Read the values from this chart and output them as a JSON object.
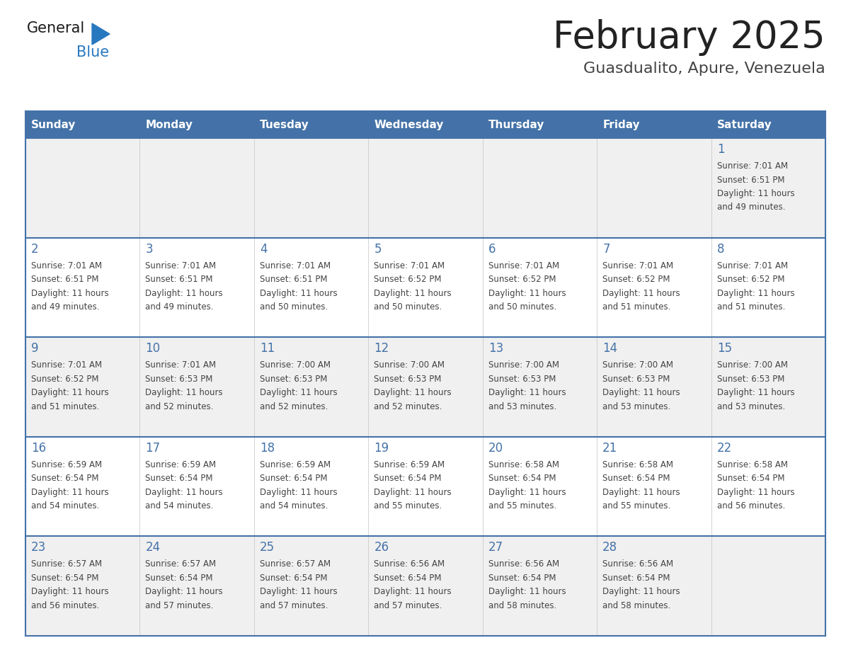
{
  "title": "February 2025",
  "subtitle": "Guasdualito, Apure, Venezuela",
  "header_bg": "#4472A8",
  "header_text_color": "#FFFFFF",
  "cell_bg_light": "#F0F0F0",
  "cell_bg_white": "#FFFFFF",
  "day_headers": [
    "Sunday",
    "Monday",
    "Tuesday",
    "Wednesday",
    "Thursday",
    "Friday",
    "Saturday"
  ],
  "title_color": "#222222",
  "subtitle_color": "#444444",
  "day_num_color": "#4472A8",
  "info_color": "#444444",
  "border_color": "#4472A8",
  "sep_color": "#CCCCCC",
  "logo_general_color": "#1a1a1a",
  "logo_blue_color": "#2878C0",
  "calendar": [
    [
      null,
      null,
      null,
      null,
      null,
      null,
      {
        "day": 1,
        "sunrise": "7:01 AM",
        "sunset": "6:51 PM",
        "daylight": "11 hours and 49 minutes."
      }
    ],
    [
      {
        "day": 2,
        "sunrise": "7:01 AM",
        "sunset": "6:51 PM",
        "daylight": "11 hours and 49 minutes."
      },
      {
        "day": 3,
        "sunrise": "7:01 AM",
        "sunset": "6:51 PM",
        "daylight": "11 hours and 49 minutes."
      },
      {
        "day": 4,
        "sunrise": "7:01 AM",
        "sunset": "6:51 PM",
        "daylight": "11 hours and 50 minutes."
      },
      {
        "day": 5,
        "sunrise": "7:01 AM",
        "sunset": "6:52 PM",
        "daylight": "11 hours and 50 minutes."
      },
      {
        "day": 6,
        "sunrise": "7:01 AM",
        "sunset": "6:52 PM",
        "daylight": "11 hours and 50 minutes."
      },
      {
        "day": 7,
        "sunrise": "7:01 AM",
        "sunset": "6:52 PM",
        "daylight": "11 hours and 51 minutes."
      },
      {
        "day": 8,
        "sunrise": "7:01 AM",
        "sunset": "6:52 PM",
        "daylight": "11 hours and 51 minutes."
      }
    ],
    [
      {
        "day": 9,
        "sunrise": "7:01 AM",
        "sunset": "6:52 PM",
        "daylight": "11 hours and 51 minutes."
      },
      {
        "day": 10,
        "sunrise": "7:01 AM",
        "sunset": "6:53 PM",
        "daylight": "11 hours and 52 minutes."
      },
      {
        "day": 11,
        "sunrise": "7:00 AM",
        "sunset": "6:53 PM",
        "daylight": "11 hours and 52 minutes."
      },
      {
        "day": 12,
        "sunrise": "7:00 AM",
        "sunset": "6:53 PM",
        "daylight": "11 hours and 52 minutes."
      },
      {
        "day": 13,
        "sunrise": "7:00 AM",
        "sunset": "6:53 PM",
        "daylight": "11 hours and 53 minutes."
      },
      {
        "day": 14,
        "sunrise": "7:00 AM",
        "sunset": "6:53 PM",
        "daylight": "11 hours and 53 minutes."
      },
      {
        "day": 15,
        "sunrise": "7:00 AM",
        "sunset": "6:53 PM",
        "daylight": "11 hours and 53 minutes."
      }
    ],
    [
      {
        "day": 16,
        "sunrise": "6:59 AM",
        "sunset": "6:54 PM",
        "daylight": "11 hours and 54 minutes."
      },
      {
        "day": 17,
        "sunrise": "6:59 AM",
        "sunset": "6:54 PM",
        "daylight": "11 hours and 54 minutes."
      },
      {
        "day": 18,
        "sunrise": "6:59 AM",
        "sunset": "6:54 PM",
        "daylight": "11 hours and 54 minutes."
      },
      {
        "day": 19,
        "sunrise": "6:59 AM",
        "sunset": "6:54 PM",
        "daylight": "11 hours and 55 minutes."
      },
      {
        "day": 20,
        "sunrise": "6:58 AM",
        "sunset": "6:54 PM",
        "daylight": "11 hours and 55 minutes."
      },
      {
        "day": 21,
        "sunrise": "6:58 AM",
        "sunset": "6:54 PM",
        "daylight": "11 hours and 55 minutes."
      },
      {
        "day": 22,
        "sunrise": "6:58 AM",
        "sunset": "6:54 PM",
        "daylight": "11 hours and 56 minutes."
      }
    ],
    [
      {
        "day": 23,
        "sunrise": "6:57 AM",
        "sunset": "6:54 PM",
        "daylight": "11 hours and 56 minutes."
      },
      {
        "day": 24,
        "sunrise": "6:57 AM",
        "sunset": "6:54 PM",
        "daylight": "11 hours and 57 minutes."
      },
      {
        "day": 25,
        "sunrise": "6:57 AM",
        "sunset": "6:54 PM",
        "daylight": "11 hours and 57 minutes."
      },
      {
        "day": 26,
        "sunrise": "6:56 AM",
        "sunset": "6:54 PM",
        "daylight": "11 hours and 57 minutes."
      },
      {
        "day": 27,
        "sunrise": "6:56 AM",
        "sunset": "6:54 PM",
        "daylight": "11 hours and 58 minutes."
      },
      {
        "day": 28,
        "sunrise": "6:56 AM",
        "sunset": "6:54 PM",
        "daylight": "11 hours and 58 minutes."
      },
      null
    ]
  ]
}
